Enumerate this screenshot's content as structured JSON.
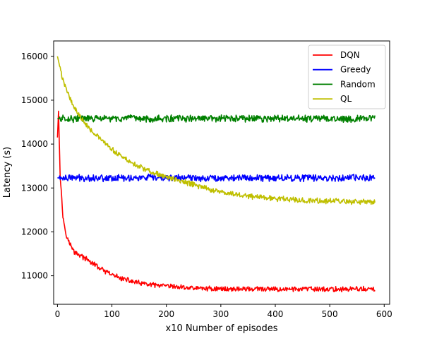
{
  "chart_data": {
    "type": "line",
    "title": "",
    "xlabel": "x10 Number of episodes",
    "ylabel": "Latency (s)",
    "xlim": [
      -7,
      610
    ],
    "ylim": [
      10350,
      16350
    ],
    "xticks": [
      0,
      100,
      200,
      300,
      400,
      500,
      600
    ],
    "yticks": [
      11000,
      12000,
      13000,
      14000,
      15000,
      16000
    ],
    "grid": false,
    "legend_position": "top-right",
    "series": [
      {
        "name": "DQN",
        "color": "#ff0000",
        "x": [
          0,
          2,
          5,
          10,
          15,
          20,
          30,
          40,
          50,
          60,
          70,
          80,
          90,
          100,
          120,
          140,
          160,
          180,
          200,
          250,
          300,
          350,
          400,
          450,
          500,
          550,
          583
        ],
        "y": [
          14150,
          14750,
          13300,
          12350,
          12000,
          11800,
          11550,
          11480,
          11400,
          11320,
          11240,
          11150,
          11080,
          11020,
          10930,
          10860,
          10810,
          10780,
          10760,
          10720,
          10700,
          10700,
          10690,
          10700,
          10690,
          10700,
          10690
        ],
        "noise": 50
      },
      {
        "name": "Greedy",
        "color": "#0000ff",
        "x": [
          0,
          583
        ],
        "y": [
          13230,
          13230
        ],
        "noise": 70
      },
      {
        "name": "Random",
        "color": "#008000",
        "x": [
          0,
          583
        ],
        "y": [
          14580,
          14580
        ],
        "noise": 70
      },
      {
        "name": "QL",
        "color": "#bfbf00",
        "x": [
          0,
          10,
          20,
          30,
          40,
          50,
          60,
          70,
          80,
          90,
          100,
          120,
          140,
          160,
          180,
          200,
          220,
          250,
          280,
          300,
          350,
          400,
          450,
          500,
          550,
          583
        ],
        "y": [
          16000,
          15450,
          15150,
          14850,
          14650,
          14500,
          14350,
          14220,
          14100,
          13980,
          13870,
          13700,
          13550,
          13430,
          13330,
          13250,
          13180,
          13080,
          12970,
          12900,
          12820,
          12760,
          12720,
          12700,
          12680,
          12670
        ],
        "noise": 55
      }
    ]
  }
}
